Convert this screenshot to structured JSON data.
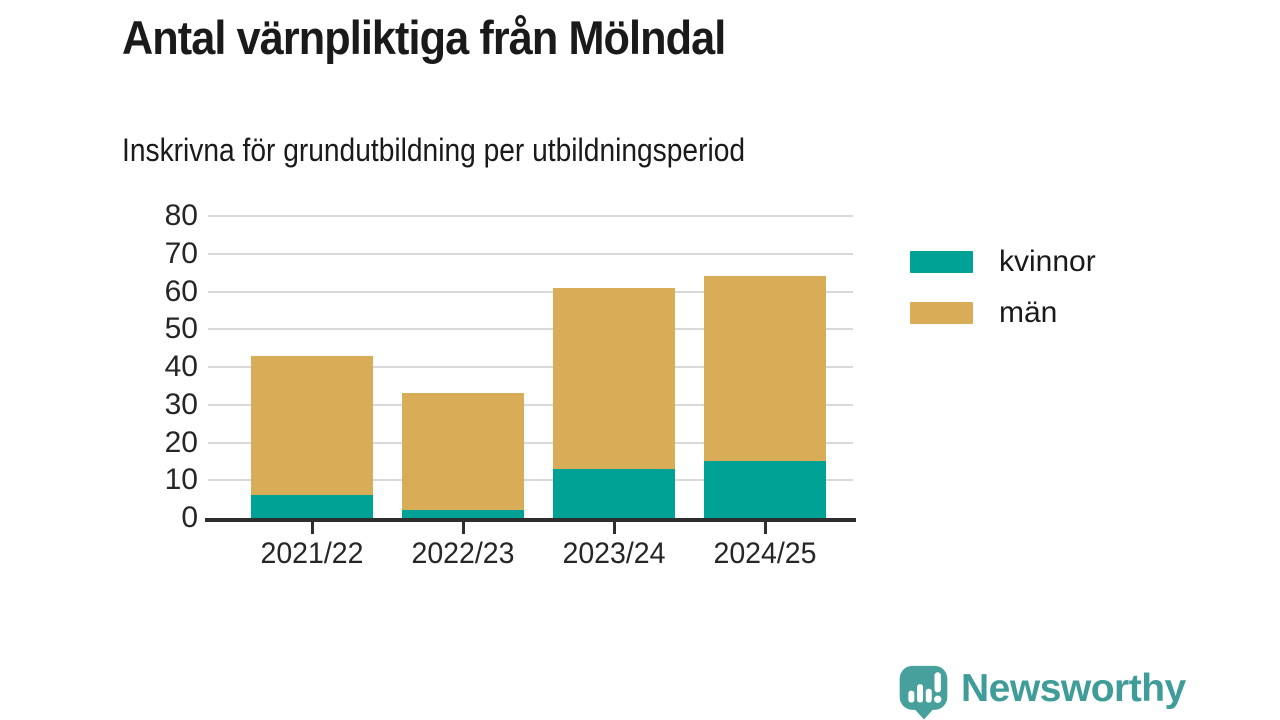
{
  "title": "Antal värnpliktiga från Mölndal",
  "subtitle": "Inskrivna för grundutbildning per utbildningsperiod",
  "chart_data": {
    "type": "bar",
    "stacked": true,
    "categories": [
      "2021/22",
      "2022/23",
      "2023/24",
      "2024/25"
    ],
    "series": [
      {
        "name": "kvinnor",
        "values": [
          6,
          2,
          13,
          15
        ],
        "color": "#01a296"
      },
      {
        "name": "män",
        "values": [
          37,
          31,
          48,
          49
        ],
        "color": "#d9ad57"
      }
    ],
    "totals": [
      43,
      33,
      61,
      64
    ],
    "ylabel": "",
    "xlabel": "",
    "ylim": [
      0,
      80
    ],
    "yticks": [
      0,
      10,
      20,
      30,
      40,
      50,
      60,
      70,
      80
    ],
    "grid": true,
    "legend_position": "right",
    "gridline_color": "#d9d9d9",
    "axis_color": "#2e2e2e",
    "label_color": "#262626"
  },
  "legend": {
    "items": [
      {
        "label": "kvinnor",
        "color": "#01a296"
      },
      {
        "label": "män",
        "color": "#d9ad57"
      }
    ]
  },
  "branding": {
    "logo_text": "Newsworthy",
    "logo_color": "#47a09c",
    "text_color": "#3f9c98"
  }
}
